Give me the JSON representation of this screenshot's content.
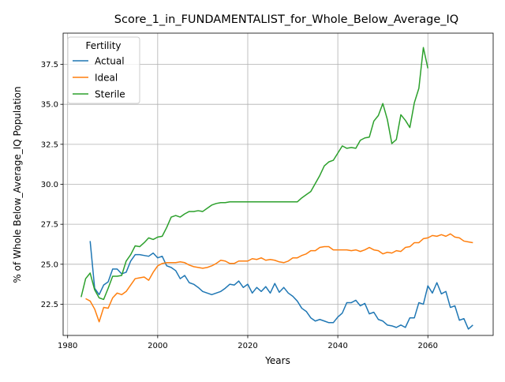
{
  "chart_data": {
    "type": "line",
    "title": "Score_1_in_FUNDAMENTALIST_for_Whole_Below_Average_IQ",
    "xlabel": "Years",
    "ylabel": "% of Whole Below_Average_IQ Population",
    "xlim": [
      1979,
      2074.5
    ],
    "ylim": [
      20.55,
      39.45
    ],
    "grid": true,
    "legend_placement": "top-left",
    "legend_title": "Fertility",
    "x_ticks": [
      1980,
      2000,
      2020,
      2040,
      2060
    ],
    "x_tick_labels": [
      "1980",
      "2000",
      "2020",
      "2040",
      "2060"
    ],
    "y_ticks": [
      22.5,
      25.0,
      27.5,
      30.0,
      32.5,
      35.0,
      37.5
    ],
    "y_tick_labels": [
      "22.5",
      "25.0",
      "27.5",
      "30.0",
      "32.5",
      "35.0",
      "37.5"
    ],
    "series": [
      {
        "name": "Actual",
        "color": "#1f77b4",
        "x": [
          1985,
          1986,
          1987,
          1988,
          1989,
          1990,
          1991,
          1992,
          1993,
          1994,
          1995,
          1996,
          1997,
          1998,
          1999,
          2000,
          2001,
          2002,
          2003,
          2004,
          2005,
          2006,
          2007,
          2008,
          2009,
          2010,
          2011,
          2012,
          2013,
          2014,
          2015,
          2016,
          2017,
          2018,
          2019,
          2020,
          2021,
          2022,
          2023,
          2024,
          2025,
          2026,
          2027,
          2028,
          2029,
          2030,
          2031,
          2032,
          2033,
          2034,
          2035,
          2036,
          2037,
          2038,
          2039,
          2040,
          2041,
          2042,
          2043,
          2044,
          2045,
          2046,
          2047,
          2048,
          2049,
          2050,
          2051,
          2052,
          2053,
          2054,
          2055,
          2056,
          2057,
          2058,
          2059,
          2060,
          2061,
          2062,
          2063,
          2064,
          2065,
          2066,
          2067,
          2068,
          2069,
          2070
        ],
        "y": [
          26.45,
          23.5,
          23.1,
          23.7,
          23.9,
          24.7,
          24.7,
          24.4,
          24.5,
          25.2,
          25.6,
          25.6,
          25.55,
          25.5,
          25.7,
          25.4,
          25.5,
          24.9,
          24.8,
          24.6,
          24.1,
          24.3,
          23.85,
          23.75,
          23.55,
          23.3,
          23.2,
          23.1,
          23.2,
          23.3,
          23.5,
          23.75,
          23.7,
          23.95,
          23.55,
          23.75,
          23.2,
          23.55,
          23.3,
          23.6,
          23.2,
          23.8,
          23.25,
          23.55,
          23.2,
          23.0,
          22.7,
          22.25,
          22.05,
          21.65,
          21.45,
          21.55,
          21.45,
          21.35,
          21.35,
          21.7,
          21.95,
          22.6,
          22.6,
          22.75,
          22.4,
          22.55,
          21.9,
          22.0,
          21.55,
          21.45,
          21.2,
          21.15,
          21.05,
          21.2,
          21.05,
          21.65,
          21.65,
          22.6,
          22.5,
          23.65,
          23.2,
          23.85,
          23.15,
          23.3,
          22.3,
          22.4,
          21.5,
          21.6,
          20.95,
          21.2
        ]
      },
      {
        "name": "Ideal",
        "color": "#ff7f0e",
        "x": [
          1984,
          1985,
          1986,
          1987,
          1988,
          1989,
          1990,
          1991,
          1992,
          1993,
          1994,
          1995,
          1996,
          1997,
          1998,
          1999,
          2000,
          2001,
          2002,
          2003,
          2004,
          2005,
          2006,
          2007,
          2008,
          2009,
          2010,
          2011,
          2012,
          2013,
          2014,
          2015,
          2016,
          2017,
          2018,
          2019,
          2020,
          2021,
          2022,
          2023,
          2024,
          2025,
          2026,
          2027,
          2028,
          2029,
          2030,
          2031,
          2032,
          2033,
          2034,
          2035,
          2036,
          2037,
          2038,
          2039,
          2040,
          2041,
          2042,
          2043,
          2044,
          2045,
          2046,
          2047,
          2048,
          2049,
          2050,
          2051,
          2052,
          2053,
          2054,
          2055,
          2056,
          2057,
          2058,
          2059,
          2060,
          2061,
          2062,
          2063,
          2064,
          2065,
          2066,
          2067,
          2068,
          2069,
          2070
        ],
        "y": [
          22.85,
          22.7,
          22.2,
          21.4,
          22.3,
          22.25,
          22.9,
          23.2,
          23.1,
          23.3,
          23.7,
          24.1,
          24.15,
          24.2,
          24.0,
          24.5,
          24.9,
          25.05,
          25.1,
          25.1,
          25.1,
          25.15,
          25.1,
          24.95,
          24.85,
          24.8,
          24.75,
          24.8,
          24.9,
          25.05,
          25.25,
          25.2,
          25.05,
          25.05,
          25.2,
          25.2,
          25.2,
          25.35,
          25.3,
          25.4,
          25.25,
          25.3,
          25.25,
          25.15,
          25.1,
          25.2,
          25.4,
          25.4,
          25.55,
          25.65,
          25.85,
          25.85,
          26.05,
          26.1,
          26.1,
          25.9,
          25.9,
          25.9,
          25.9,
          25.85,
          25.9,
          25.8,
          25.9,
          26.05,
          25.9,
          25.85,
          25.65,
          25.75,
          25.7,
          25.85,
          25.8,
          26.05,
          26.1,
          26.35,
          26.35,
          26.6,
          26.65,
          26.8,
          26.75,
          26.85,
          26.75,
          26.9,
          26.7,
          26.65,
          26.45,
          26.4,
          26.35
        ]
      },
      {
        "name": "Sterile",
        "color": "#2ca02c",
        "x": [
          1983,
          1984,
          1985,
          1986,
          1987,
          1988,
          1989,
          1990,
          1991,
          1992,
          1993,
          1994,
          1995,
          1996,
          1997,
          1998,
          1999,
          2000,
          2001,
          2002,
          2003,
          2004,
          2005,
          2006,
          2007,
          2008,
          2009,
          2010,
          2011,
          2012,
          2013,
          2014,
          2015,
          2016,
          2017,
          2018,
          2019,
          2020,
          2021,
          2022,
          2023,
          2024,
          2025,
          2026,
          2027,
          2028,
          2029,
          2030,
          2031,
          2032,
          2033,
          2034,
          2035,
          2036,
          2037,
          2038,
          2039,
          2040,
          2041,
          2042,
          2043,
          2044,
          2045,
          2046,
          2047,
          2048,
          2049,
          2050,
          2051,
          2052,
          2053,
          2054,
          2055,
          2056,
          2057,
          2058,
          2059,
          2060
        ],
        "y": [
          22.95,
          24.1,
          24.45,
          23.4,
          22.9,
          22.8,
          23.5,
          24.25,
          24.25,
          24.3,
          25.2,
          25.6,
          26.15,
          26.1,
          26.35,
          26.65,
          26.55,
          26.7,
          26.75,
          27.3,
          27.95,
          28.05,
          27.95,
          28.15,
          28.3,
          28.3,
          28.35,
          28.3,
          28.5,
          28.7,
          28.8,
          28.85,
          28.85,
          28.9,
          28.9,
          28.9,
          28.9,
          28.9,
          28.9,
          28.9,
          28.9,
          28.9,
          28.9,
          28.9,
          28.9,
          28.9,
          28.9,
          28.9,
          28.9,
          29.15,
          29.35,
          29.55,
          30.05,
          30.55,
          31.15,
          31.4,
          31.5,
          31.95,
          32.4,
          32.25,
          32.3,
          32.25,
          32.75,
          32.9,
          32.95,
          33.95,
          34.3,
          35.05,
          34.05,
          32.55,
          32.8,
          34.35,
          34.0,
          33.55,
          35.1,
          36.0,
          38.55,
          37.25
        ]
      }
    ]
  }
}
